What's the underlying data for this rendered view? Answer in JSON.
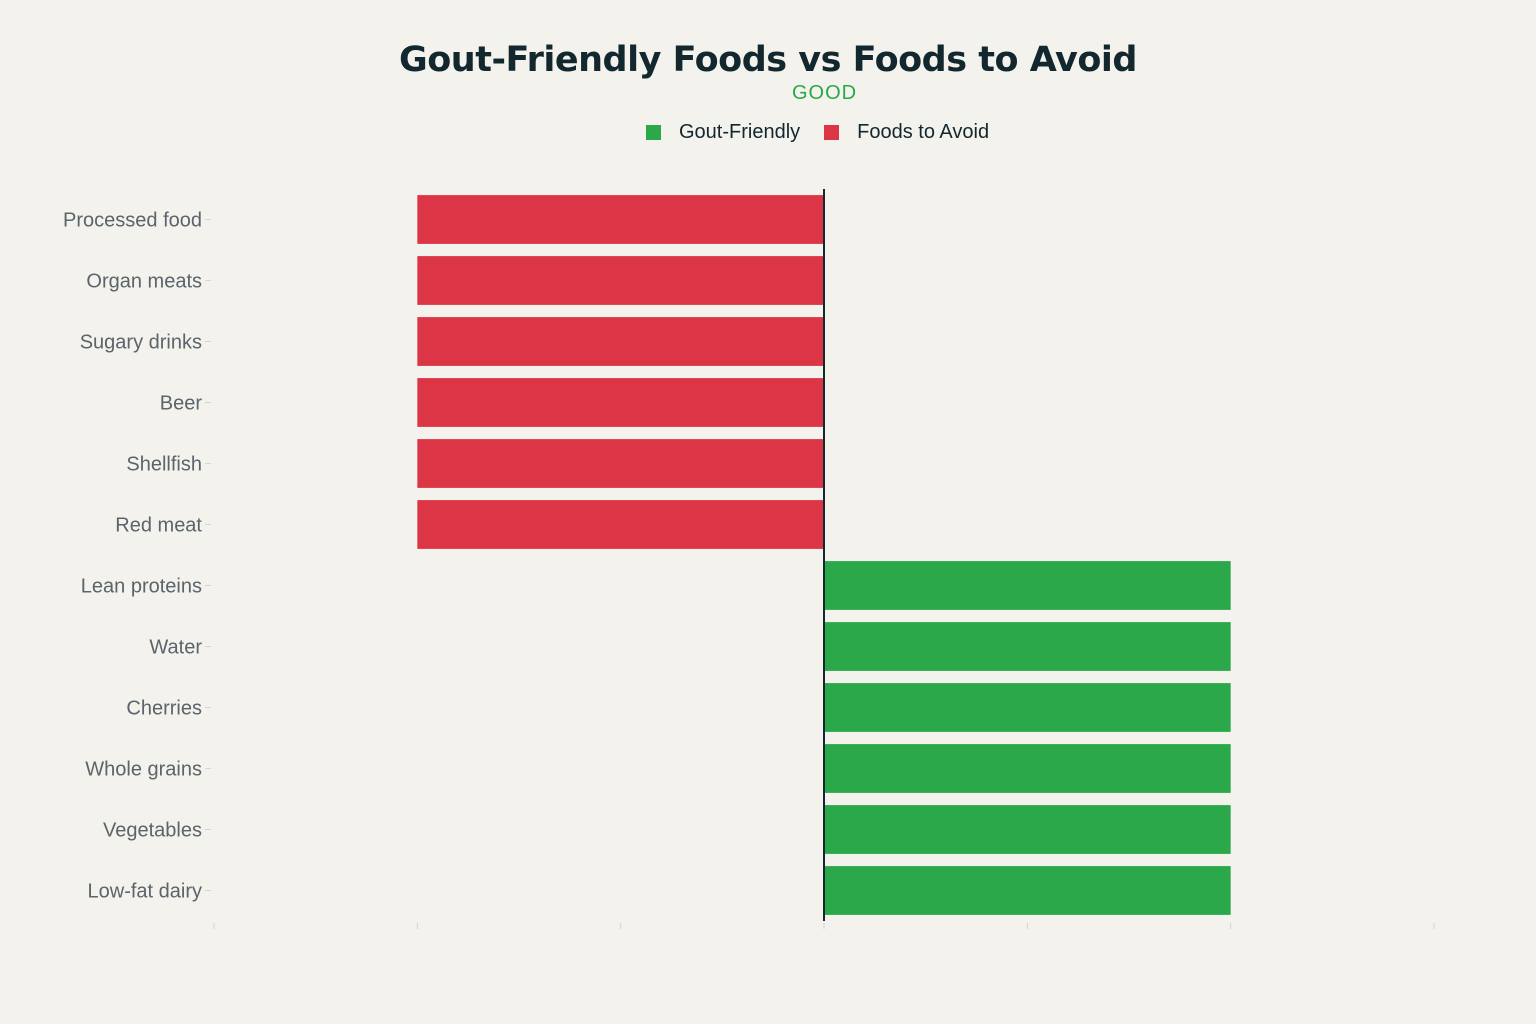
{
  "colors": {
    "good": "#2aa84a",
    "avoid": "#dc3545",
    "background": "#f3f2ed",
    "label": "#5b646b",
    "axis": "#13272f"
  },
  "chart_data": {
    "type": "bar",
    "orientation": "horizontal",
    "title": "Gout-Friendly Foods vs Foods to Avoid",
    "subtitle": "GOOD",
    "xlabel": "",
    "ylabel": "",
    "xlim": [
      -3,
      3
    ],
    "grid": false,
    "legend_position": "top-center",
    "categories": [
      "Processed food",
      "Organ meats",
      "Sugary drinks",
      "Beer",
      "Shellfish",
      "Red meat",
      "Lean proteins",
      "Water",
      "Cherries",
      "Whole grains",
      "Vegetables",
      "Low-fat dairy"
    ],
    "series": [
      {
        "name": "Gout-Friendly",
        "color": "#2aa84a",
        "values": [
          null,
          null,
          null,
          null,
          null,
          null,
          2,
          2,
          2,
          2,
          2,
          2
        ]
      },
      {
        "name": "Foods to Avoid",
        "color": "#dc3545",
        "values": [
          -2,
          -2,
          -2,
          -2,
          -2,
          -2,
          null,
          null,
          null,
          null,
          null,
          null
        ]
      }
    ]
  }
}
